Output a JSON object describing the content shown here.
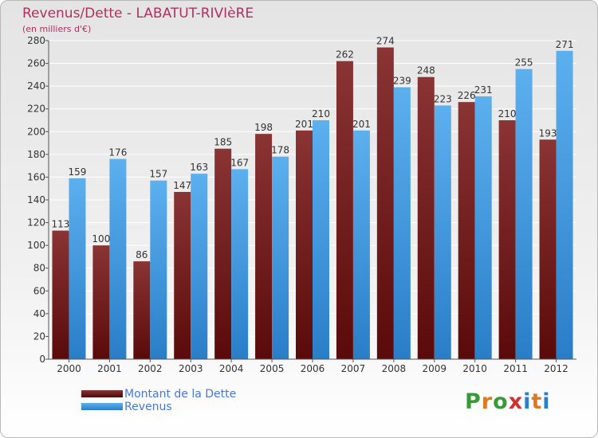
{
  "title": "Revenus/Dette - LABATUT-RIVIèRE",
  "subtitle": "(en milliers d'€)",
  "logo": {
    "letters": [
      "P",
      "r",
      "o",
      "x",
      "i",
      "t",
      "i"
    ],
    "colors": [
      "#3a9a3a",
      "#e07820",
      "#3a9a3a",
      "#d03030",
      "#2a80c8",
      "#e07820",
      "#2a80c8"
    ]
  },
  "colors": {
    "dette": "#7a1f1f",
    "revenus": "#3b9ae0",
    "axis_text": "#333333",
    "value_text": "#333333"
  },
  "chart_data": {
    "type": "bar",
    "title": "Revenus/Dette - LABATUT-RIVIèRE",
    "ylabel": "(en milliers d'€)",
    "categories": [
      "2000",
      "2001",
      "2002",
      "2003",
      "2004",
      "2005",
      "2006",
      "2007",
      "2008",
      "2009",
      "2010",
      "2011",
      "2012"
    ],
    "series": [
      {
        "name": "Montant de la Dette",
        "values": [
          113,
          100,
          86,
          147,
          185,
          198,
          201,
          262,
          274,
          248,
          226,
          210,
          193
        ]
      },
      {
        "name": "Revenus",
        "values": [
          159,
          176,
          157,
          163,
          167,
          178,
          210,
          201,
          239,
          223,
          231,
          255,
          271
        ]
      }
    ],
    "ylim": [
      0,
      280
    ],
    "yticks": [
      0,
      20,
      40,
      60,
      80,
      100,
      120,
      140,
      160,
      180,
      200,
      220,
      240,
      260,
      280
    ],
    "grid": true,
    "legend_position": "bottom-left"
  }
}
